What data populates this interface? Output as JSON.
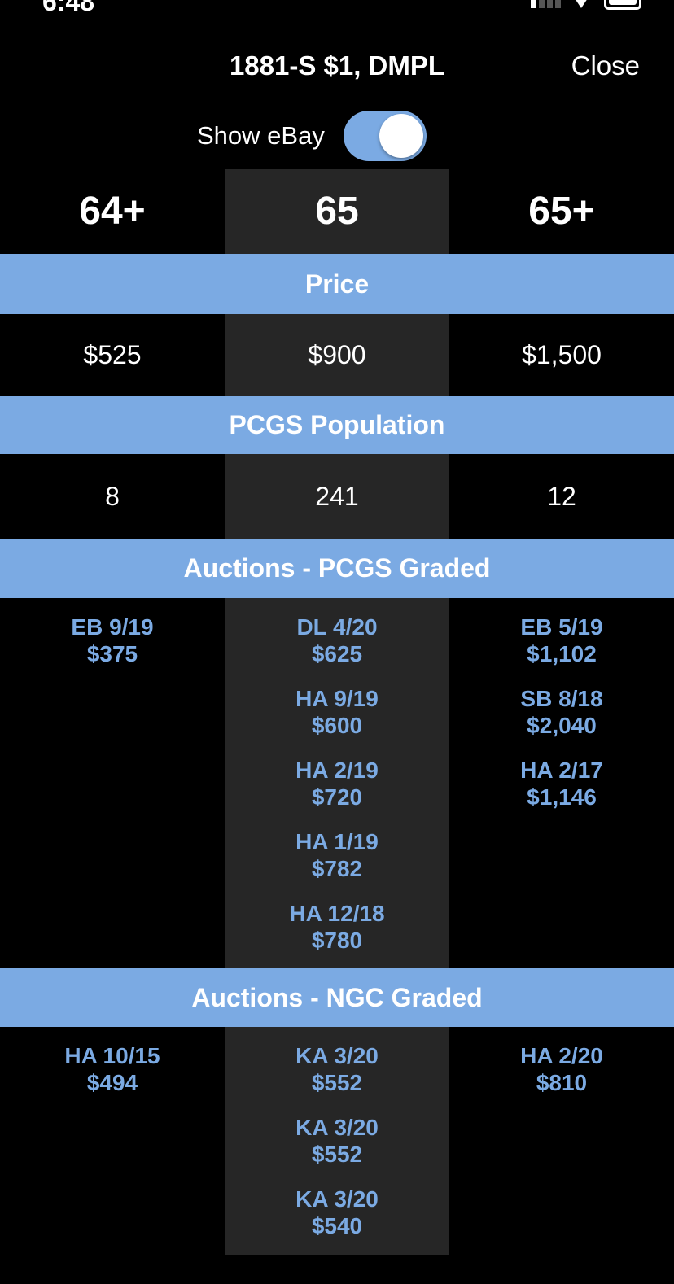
{
  "status": {
    "time": "6:48"
  },
  "nav": {
    "title": "1881-S $1, DMPL",
    "close_label": "Close"
  },
  "toggle": {
    "label": "Show eBay",
    "on": true
  },
  "grades": [
    "64+",
    "65",
    "65+"
  ],
  "sections": {
    "price": "Price",
    "population": "PCGS Population",
    "pcgs_auctions": "Auctions - PCGS Graded",
    "ngc_auctions": "Auctions - NGC Graded"
  },
  "prices": [
    "$525",
    "$900",
    "$1,500"
  ],
  "population": [
    "8",
    "241",
    "12"
  ],
  "pcgs_auctions": [
    [
      {
        "house_date": "EB 9/19",
        "price": "$375"
      }
    ],
    [
      {
        "house_date": "DL 4/20",
        "price": "$625"
      },
      {
        "house_date": "HA 9/19",
        "price": "$600"
      },
      {
        "house_date": "HA 2/19",
        "price": "$720"
      },
      {
        "house_date": "HA 1/19",
        "price": "$782"
      },
      {
        "house_date": "HA 12/18",
        "price": "$780"
      }
    ],
    [
      {
        "house_date": "EB 5/19",
        "price": "$1,102"
      },
      {
        "house_date": "SB 8/18",
        "price": "$2,040"
      },
      {
        "house_date": "HA 2/17",
        "price": "$1,146"
      }
    ]
  ],
  "ngc_auctions": [
    [
      {
        "house_date": "HA 10/15",
        "price": "$494"
      }
    ],
    [
      {
        "house_date": "KA 3/20",
        "price": "$552"
      },
      {
        "house_date": "KA 3/20",
        "price": "$552"
      },
      {
        "house_date": "KA 3/20",
        "price": "$540"
      }
    ],
    [
      {
        "house_date": "HA 2/20",
        "price": "$810"
      }
    ]
  ],
  "colors": {
    "accent": "#7baae3",
    "middle_column": "#262626",
    "background": "#000000"
  }
}
